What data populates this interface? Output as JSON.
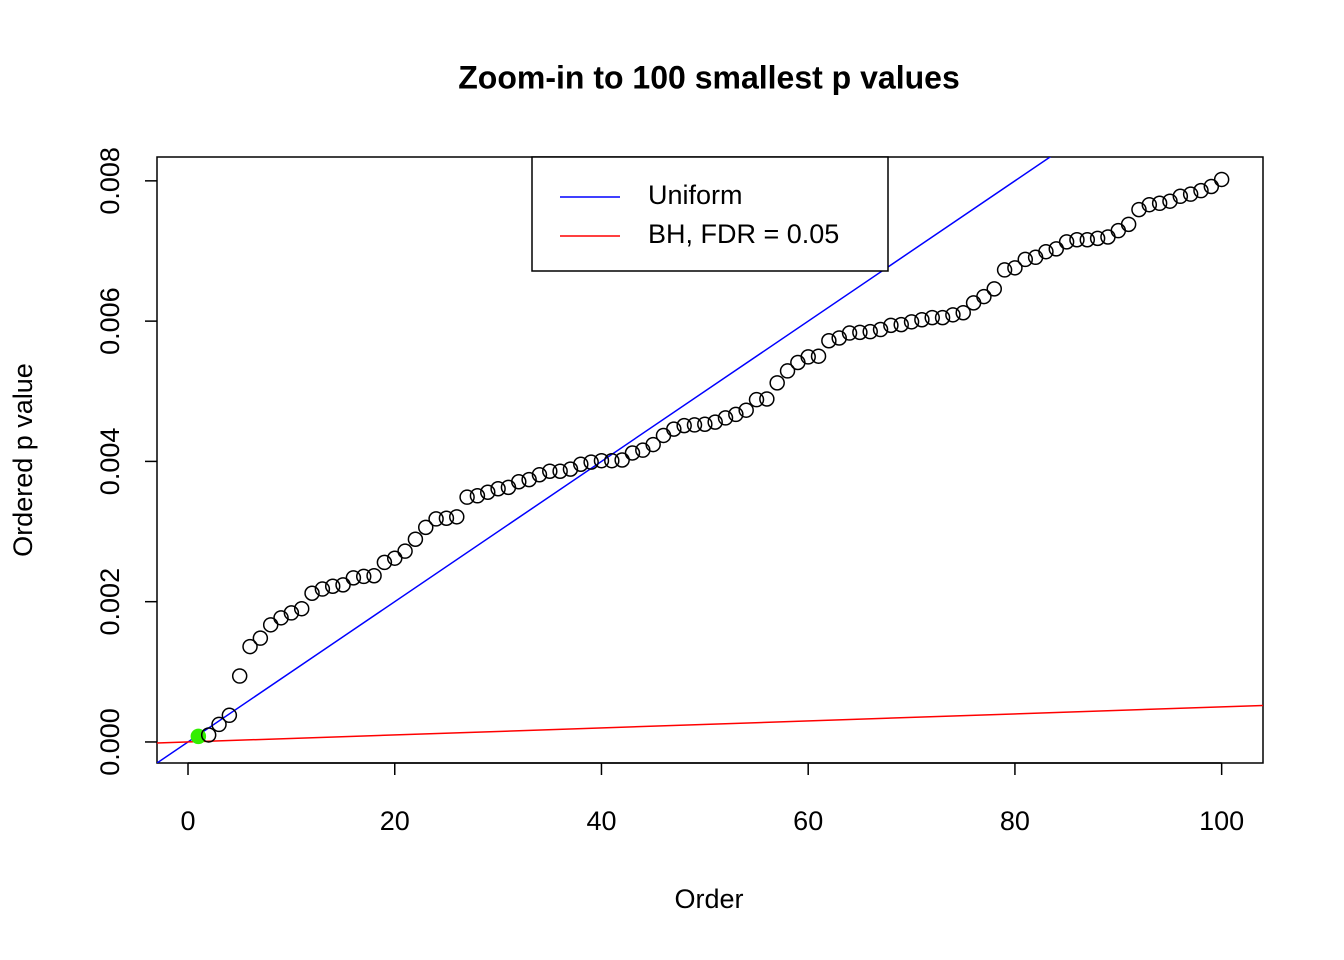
{
  "chart_data": {
    "type": "scatter",
    "title": "Zoom-in to 100 smallest p values",
    "x_label": "Order",
    "y_label": "Ordered p value",
    "xlim": [
      -3,
      104
    ],
    "ylim": [
      -0.0003,
      0.00834
    ],
    "xticks": [
      0,
      20,
      40,
      60,
      80,
      100
    ],
    "yticks": [
      {
        "value": 0,
        "label": "0.000"
      },
      {
        "value": 0.002,
        "label": "0.002"
      },
      {
        "value": 0.004,
        "label": "0.004"
      },
      {
        "value": 0.006,
        "label": "0.006"
      },
      {
        "value": 0.008,
        "label": "0.008"
      }
    ],
    "legend_position": "top",
    "lines": [
      {
        "name": "Uniform",
        "color": "#0000ff",
        "slope": 0.0001,
        "intercept": 0
      },
      {
        "name": "BH, FDR = 0.05",
        "color": "#ff0000",
        "slope": 5e-06,
        "intercept": 0
      }
    ],
    "series": [
      {
        "color": "#33ee00",
        "filled": true,
        "x": [
          1
        ],
        "values": [
          8e-05
        ]
      },
      {
        "color": "#000000",
        "filled": false,
        "x": [
          2,
          3,
          4,
          5,
          6,
          7,
          8,
          9,
          10,
          11,
          12,
          13,
          14,
          15,
          16,
          17,
          18,
          19,
          20,
          21,
          22,
          23,
          24,
          25,
          26,
          27,
          28,
          29,
          30,
          31,
          32,
          33,
          34,
          35,
          36,
          37,
          38,
          39,
          40,
          41,
          42,
          43,
          44,
          45,
          46,
          47,
          48,
          49,
          50,
          51,
          52,
          53,
          54,
          55,
          56,
          57,
          58,
          59,
          60,
          61,
          62,
          63,
          64,
          65,
          66,
          67,
          68,
          69,
          70,
          71,
          72,
          73,
          74,
          75,
          76,
          77,
          78,
          79,
          80,
          81,
          82,
          83,
          84,
          85,
          86,
          87,
          88,
          89,
          90,
          91,
          92,
          93,
          94,
          95,
          96,
          97,
          98,
          99,
          100
        ],
        "values": [
          0.0001,
          0.00025,
          0.00038,
          0.00094,
          0.00136,
          0.00148,
          0.00167,
          0.00177,
          0.00184,
          0.0019,
          0.00212,
          0.00218,
          0.00222,
          0.00224,
          0.00234,
          0.00236,
          0.00237,
          0.00256,
          0.00262,
          0.00272,
          0.00289,
          0.00306,
          0.00318,
          0.00319,
          0.00321,
          0.00349,
          0.00351,
          0.00356,
          0.00361,
          0.00363,
          0.00371,
          0.00374,
          0.00381,
          0.00386,
          0.00386,
          0.00389,
          0.00396,
          0.00399,
          0.00401,
          0.00401,
          0.00402,
          0.00412,
          0.00416,
          0.00424,
          0.00437,
          0.00446,
          0.00451,
          0.00452,
          0.00453,
          0.00456,
          0.00462,
          0.00467,
          0.00473,
          0.00488,
          0.00489,
          0.00512,
          0.00529,
          0.00541,
          0.00549,
          0.0055,
          0.00572,
          0.00576,
          0.00583,
          0.00584,
          0.00585,
          0.00588,
          0.00594,
          0.00595,
          0.00599,
          0.00602,
          0.00605,
          0.00605,
          0.00609,
          0.00612,
          0.00626,
          0.00635,
          0.00646,
          0.00673,
          0.00676,
          0.00688,
          0.00691,
          0.00699,
          0.00703,
          0.00713,
          0.00716,
          0.00716,
          0.00718,
          0.0072,
          0.00729,
          0.00738,
          0.00759,
          0.00766,
          0.00768,
          0.00771,
          0.00778,
          0.00781,
          0.00786,
          0.00792,
          0.00802
        ]
      }
    ]
  }
}
